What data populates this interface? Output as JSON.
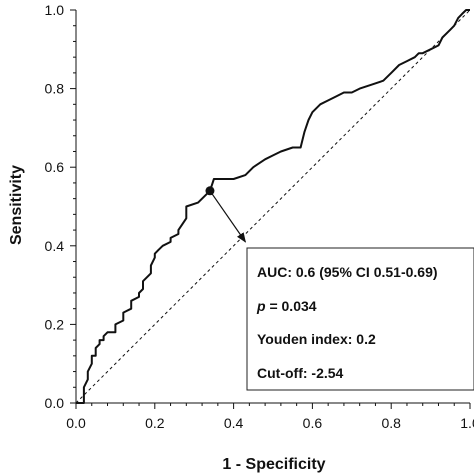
{
  "chart_data": {
    "type": "line",
    "xlabel": "1 - Specificity",
    "ylabel": "Sensitivity",
    "xlim": [
      0.0,
      1.0
    ],
    "ylim": [
      0.0,
      1.0
    ],
    "x_ticks": [
      "0.0",
      "0.2",
      "0.4",
      "0.6",
      "0.8",
      "1.0"
    ],
    "y_ticks": [
      "0.0",
      "0.2",
      "0.4",
      "0.6",
      "0.8",
      "1.0"
    ],
    "grid": false,
    "series": [
      {
        "style": "solid",
        "x": [
          0.0,
          0.02,
          0.02,
          0.03,
          0.03,
          0.04,
          0.04,
          0.05,
          0.05,
          0.06,
          0.06,
          0.07,
          0.07,
          0.08,
          0.08,
          0.1,
          0.1,
          0.12,
          0.12,
          0.14,
          0.14,
          0.16,
          0.16,
          0.17,
          0.17,
          0.19,
          0.19,
          0.2,
          0.2,
          0.21,
          0.21,
          0.22,
          0.22,
          0.24,
          0.24,
          0.26,
          0.26,
          0.28,
          0.28,
          0.31,
          0.34,
          0.35,
          0.37,
          0.4,
          0.43,
          0.45,
          0.48,
          0.5,
          0.52,
          0.55,
          0.57,
          0.58,
          0.59,
          0.6,
          0.62,
          0.64,
          0.66,
          0.68,
          0.7,
          0.72,
          0.75,
          0.78,
          0.8,
          0.82,
          0.84,
          0.86,
          0.87,
          0.88,
          0.9,
          0.92,
          0.93,
          0.95,
          0.96,
          0.97,
          0.98,
          0.99,
          1.0
        ],
        "y": [
          0.0,
          0.0,
          0.04,
          0.06,
          0.08,
          0.1,
          0.12,
          0.12,
          0.14,
          0.15,
          0.16,
          0.16,
          0.17,
          0.18,
          0.18,
          0.18,
          0.2,
          0.21,
          0.23,
          0.24,
          0.26,
          0.27,
          0.28,
          0.29,
          0.31,
          0.33,
          0.35,
          0.37,
          0.38,
          0.39,
          0.39,
          0.4,
          0.4,
          0.41,
          0.42,
          0.43,
          0.44,
          0.47,
          0.5,
          0.51,
          0.54,
          0.57,
          0.57,
          0.57,
          0.58,
          0.6,
          0.62,
          0.63,
          0.64,
          0.65,
          0.65,
          0.69,
          0.72,
          0.74,
          0.76,
          0.77,
          0.78,
          0.79,
          0.79,
          0.8,
          0.81,
          0.82,
          0.84,
          0.86,
          0.87,
          0.88,
          0.89,
          0.89,
          0.9,
          0.91,
          0.93,
          0.95,
          0.96,
          0.98,
          0.99,
          1.0,
          1.0
        ]
      },
      {
        "style": "dashed",
        "x": [
          0.0,
          1.0
        ],
        "y": [
          0.0,
          1.0
        ]
      }
    ],
    "highlight_point": {
      "x": 0.34,
      "y": 0.54
    },
    "arrow_target": {
      "x": 0.43,
      "y": 0.41
    },
    "annotation": {
      "auc": "AUC: 0.6 (95% CI 0.51-0.69)",
      "p_symbol": "p",
      "p_value": " = 0.034",
      "youden": "Youden index: 0.2",
      "cutoff": "Cut-off: -2.54"
    }
  }
}
